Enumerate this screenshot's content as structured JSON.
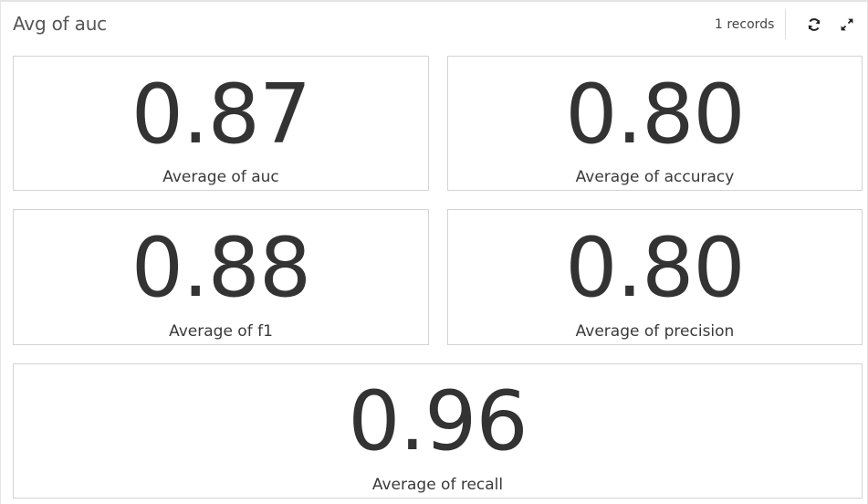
{
  "header": {
    "title": "Avg of auc",
    "records": "1 records",
    "icons": {
      "refresh": "refresh-icon",
      "expand": "expand-icon"
    }
  },
  "tiles": [
    {
      "value": "0.87",
      "label": "Average of auc"
    },
    {
      "value": "0.80",
      "label": "Average of accuracy"
    },
    {
      "value": "0.88",
      "label": "Average of f1"
    },
    {
      "value": "0.80",
      "label": "Average of precision"
    },
    {
      "value": "0.96",
      "label": "Average of recall"
    }
  ],
  "colors": {
    "text": "#333333",
    "border": "#d4d4d4",
    "background": "#ffffff"
  }
}
